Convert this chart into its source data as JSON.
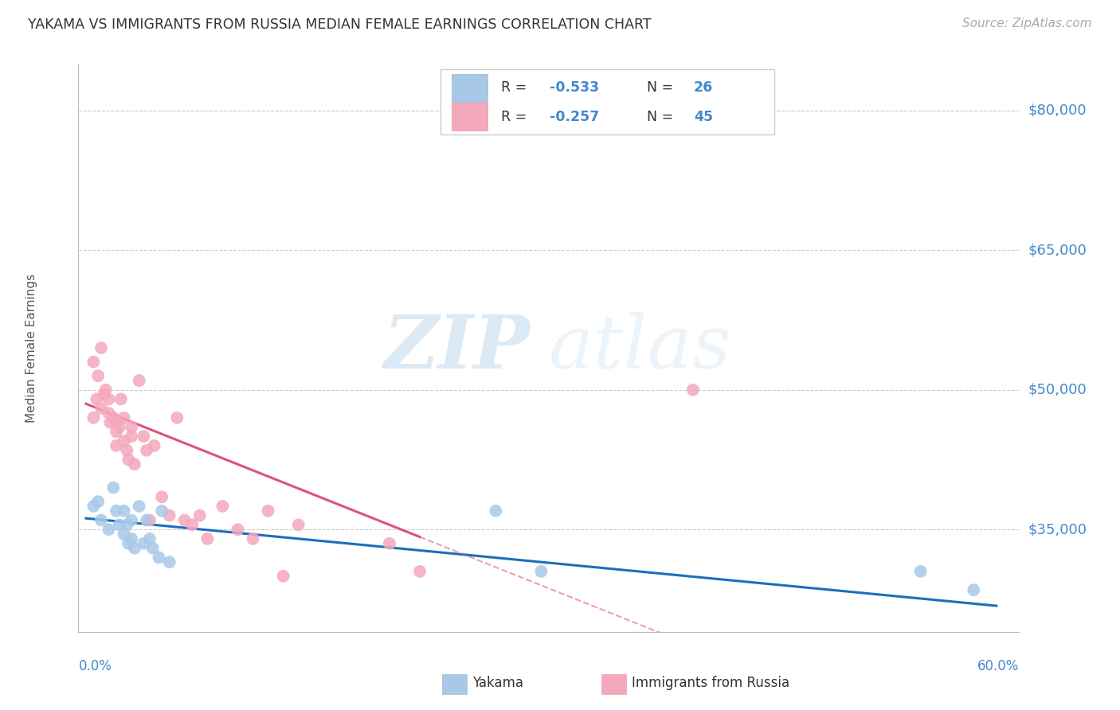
{
  "title": "YAKAMA VS IMMIGRANTS FROM RUSSIA MEDIAN FEMALE EARNINGS CORRELATION CHART",
  "source": "Source: ZipAtlas.com",
  "ylabel": "Median Female Earnings",
  "y_tick_labels": [
    "$35,000",
    "$50,000",
    "$65,000",
    "$80,000"
  ],
  "y_tick_values": [
    35000,
    50000,
    65000,
    80000
  ],
  "xlim": [
    -0.005,
    0.615
  ],
  "ylim": [
    24000,
    85000
  ],
  "watermark_zip": "ZIP",
  "watermark_atlas": "atlas",
  "yakama_color": "#a8c8e8",
  "russia_color": "#f4a8bc",
  "yakama_line_color": "#1a6fbd",
  "russia_line_color": "#e0507a",
  "background_color": "#ffffff",
  "grid_color": "#cccccc",
  "title_color": "#333333",
  "right_label_color": "#4488cc",
  "legend_r1": "-0.533",
  "legend_n1": "26",
  "legend_r2": "-0.257",
  "legend_n2": "45",
  "yakama_x": [
    0.005,
    0.008,
    0.01,
    0.015,
    0.018,
    0.02,
    0.022,
    0.025,
    0.025,
    0.027,
    0.028,
    0.03,
    0.03,
    0.032,
    0.035,
    0.038,
    0.04,
    0.042,
    0.044,
    0.048,
    0.05,
    0.055,
    0.27,
    0.3,
    0.55,
    0.585
  ],
  "yakama_y": [
    37500,
    38000,
    36000,
    35000,
    39500,
    37000,
    35500,
    37000,
    34500,
    35500,
    33500,
    36000,
    34000,
    33000,
    37500,
    33500,
    36000,
    34000,
    33000,
    32000,
    37000,
    31500,
    37000,
    30500,
    30500,
    28500
  ],
  "russia_x": [
    0.005,
    0.005,
    0.007,
    0.008,
    0.01,
    0.01,
    0.012,
    0.013,
    0.015,
    0.015,
    0.016,
    0.018,
    0.02,
    0.02,
    0.02,
    0.022,
    0.023,
    0.025,
    0.025,
    0.027,
    0.028,
    0.03,
    0.03,
    0.032,
    0.035,
    0.038,
    0.04,
    0.042,
    0.045,
    0.05,
    0.055,
    0.06,
    0.065,
    0.07,
    0.075,
    0.08,
    0.09,
    0.1,
    0.11,
    0.12,
    0.13,
    0.14,
    0.2,
    0.22,
    0.4
  ],
  "russia_y": [
    47000,
    53000,
    49000,
    51500,
    48000,
    54500,
    49500,
    50000,
    47500,
    49000,
    46500,
    47000,
    44000,
    45500,
    46500,
    46000,
    49000,
    44500,
    47000,
    43500,
    42500,
    45000,
    46000,
    42000,
    51000,
    45000,
    43500,
    36000,
    44000,
    38500,
    36500,
    47000,
    36000,
    35500,
    36500,
    34000,
    37500,
    35000,
    34000,
    37000,
    30000,
    35500,
    33500,
    30500,
    50000
  ]
}
